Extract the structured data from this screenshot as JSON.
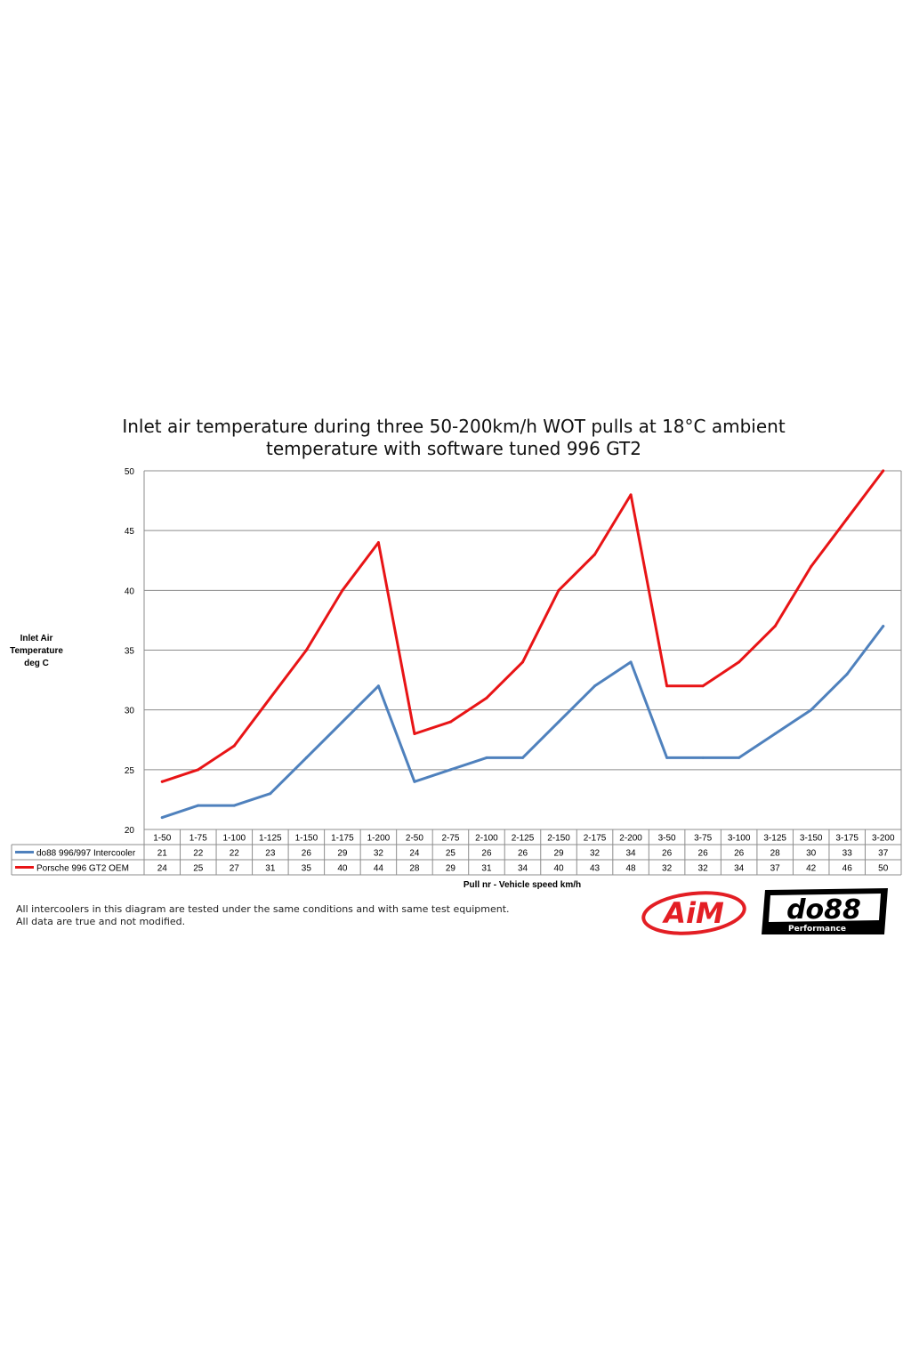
{
  "chart_data": {
    "type": "line",
    "title": [
      "Inlet air temperature during three 50-200km/h WOT pulls at 18°C ambient",
      "temperature with software tuned 996 GT2"
    ],
    "ylabel": [
      "Inlet Air",
      "Temperature",
      "deg C"
    ],
    "xlabel": "Pull nr - Vehicle speed km/h",
    "ylim": [
      20,
      50
    ],
    "yticks": [
      20,
      25,
      30,
      35,
      40,
      45,
      50
    ],
    "grid": true,
    "legend": "data-table",
    "categories": [
      "1-50",
      "1-75",
      "1-100",
      "1-125",
      "1-150",
      "1-175",
      "1-200",
      "2-50",
      "2-75",
      "2-100",
      "2-125",
      "2-150",
      "2-175",
      "2-200",
      "3-50",
      "3-75",
      "3-100",
      "3-125",
      "3-150",
      "3-175",
      "3-200"
    ],
    "series": [
      {
        "name": "do88 996/997 Intercooler",
        "color": "#4f81bd",
        "values": [
          21,
          22,
          22,
          23,
          26,
          29,
          32,
          24,
          25,
          26,
          26,
          29,
          32,
          34,
          26,
          26,
          26,
          28,
          30,
          33,
          37
        ]
      },
      {
        "name": "Porsche 996 GT2 OEM",
        "color": "#e81416",
        "values": [
          24,
          25,
          27,
          31,
          35,
          40,
          44,
          28,
          29,
          31,
          34,
          40,
          43,
          48,
          32,
          32,
          34,
          37,
          42,
          46,
          50
        ]
      }
    ]
  },
  "notes": {
    "line1": "All intercoolers in this diagram are tested under the same conditions and with same test equipment.",
    "line2": "All data are true and not modified."
  },
  "logos": {
    "aim": {
      "text": "AiM",
      "color": "#e31e24"
    },
    "do88": {
      "text": "do88",
      "subtext": "Performance",
      "color": "#000000"
    }
  }
}
